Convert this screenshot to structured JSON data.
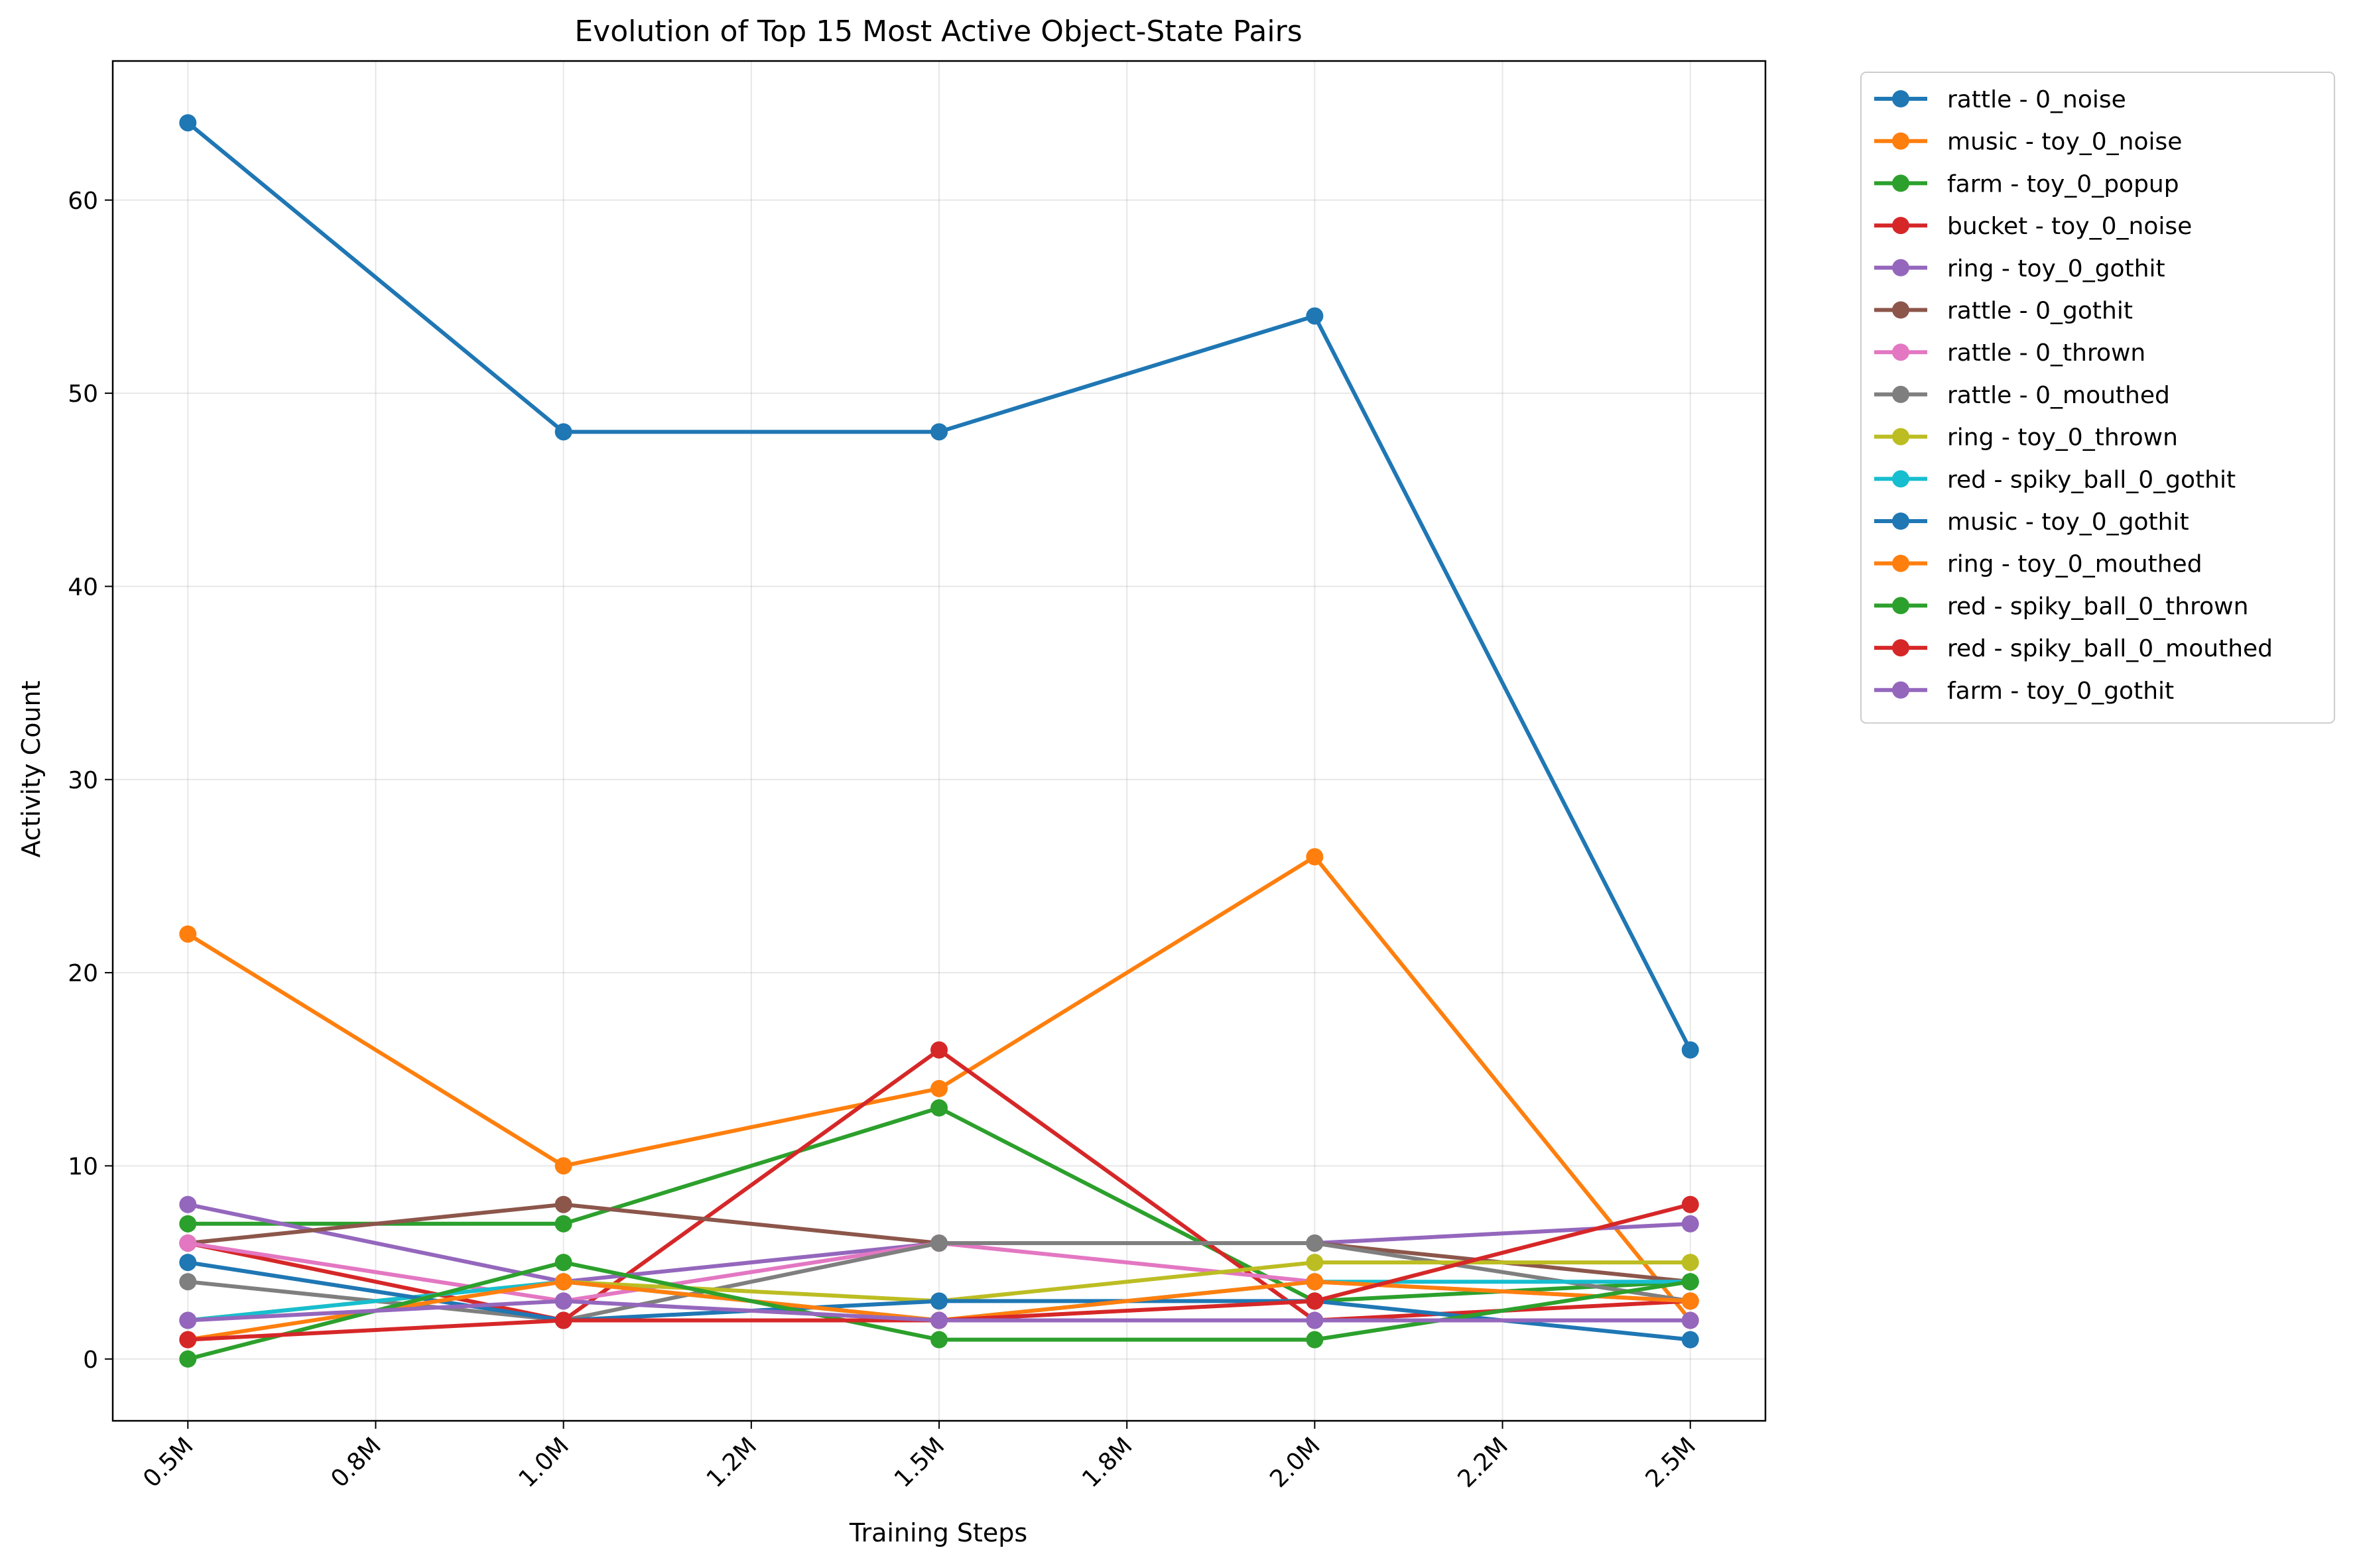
{
  "chart_data": {
    "type": "line",
    "title": "Evolution of Top 15 Most Active Object-State Pairs",
    "xlabel": "Training Steps",
    "ylabel": "Activity Count",
    "x": [
      0.5,
      1.0,
      1.5,
      2.0,
      2.5
    ],
    "x_unit": "M steps",
    "xlim": [
      0.4,
      2.6
    ],
    "ylim": [
      -3.2,
      67.2
    ],
    "xticks": [
      0.5,
      0.75,
      1.0,
      1.25,
      1.5,
      1.75,
      2.0,
      2.25,
      2.5
    ],
    "xtick_labels": [
      "0.5M",
      "0.8M",
      "1.0M",
      "1.2M",
      "1.5M",
      "1.8M",
      "2.0M",
      "2.2M",
      "2.5M"
    ],
    "yticks": [
      0,
      10,
      20,
      30,
      40,
      50,
      60
    ],
    "ytick_labels": [
      "0",
      "10",
      "20",
      "30",
      "40",
      "50",
      "60"
    ],
    "grid": true,
    "legend_position": "outside-top-right",
    "series": [
      {
        "name": "rattle - 0_noise",
        "color": "#1f77b4",
        "values": [
          64,
          48,
          48,
          54,
          16
        ]
      },
      {
        "name": "music - toy_0_noise",
        "color": "#ff7f0e",
        "values": [
          22,
          10,
          14,
          26,
          2
        ]
      },
      {
        "name": "farm - toy_0_popup",
        "color": "#2ca02c",
        "values": [
          7,
          7,
          13,
          3,
          4
        ]
      },
      {
        "name": "bucket - toy_0_noise",
        "color": "#d62728",
        "values": [
          6,
          2,
          16,
          2,
          3
        ]
      },
      {
        "name": "ring - toy_0_gothit",
        "color": "#9467bd",
        "values": [
          8,
          4,
          6,
          6,
          7
        ]
      },
      {
        "name": "rattle - 0_gothit",
        "color": "#8c564b",
        "values": [
          6,
          8,
          6,
          6,
          4
        ]
      },
      {
        "name": "rattle - 0_thrown",
        "color": "#e377c2",
        "values": [
          6,
          3,
          6,
          4,
          3
        ]
      },
      {
        "name": "rattle - 0_mouthed",
        "color": "#7f7f7f",
        "values": [
          4,
          2,
          6,
          6,
          3
        ]
      },
      {
        "name": "ring - toy_0_thrown",
        "color": "#bcbd22",
        "values": [
          2,
          4,
          3,
          5,
          5
        ]
      },
      {
        "name": "red - spiky_ball_0_gothit",
        "color": "#17becf",
        "values": [
          2,
          4,
          2,
          4,
          4
        ]
      },
      {
        "name": "music - toy_0_gothit",
        "color": "#1f77b4",
        "values": [
          5,
          2,
          3,
          3,
          1
        ]
      },
      {
        "name": "ring - toy_0_mouthed",
        "color": "#ff7f0e",
        "values": [
          1,
          4,
          2,
          4,
          3
        ]
      },
      {
        "name": "red - spiky_ball_0_thrown",
        "color": "#2ca02c",
        "values": [
          0,
          5,
          1,
          1,
          4
        ]
      },
      {
        "name": "red - spiky_ball_0_mouthed",
        "color": "#d62728",
        "values": [
          1,
          2,
          2,
          3,
          8
        ]
      },
      {
        "name": "farm - toy_0_gothit",
        "color": "#9467bd",
        "values": [
          2,
          3,
          2,
          2,
          2
        ]
      }
    ]
  }
}
